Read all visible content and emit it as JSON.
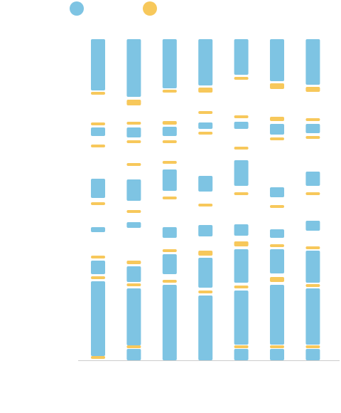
{
  "chart_data": {
    "type": "range_bar",
    "ylim": [
      0,
      451
    ],
    "series": [
      {
        "color": "#7ec4e3",
        "values": [
          [
            [
              379,
              451
            ],
            [
              315,
              327
            ],
            [
              228,
              255
            ],
            [
              180,
              187
            ],
            [
              121,
              140
            ],
            [
              6,
              111
            ]
          ],
          [
            [
              370,
              451
            ],
            [
              313,
              327
            ],
            [
              224,
              254
            ],
            [
              186,
              194
            ],
            [
              110,
              132
            ],
            [
              21,
              101
            ],
            [
              0,
              16
            ]
          ],
          [
            [
              382,
              451
            ],
            [
              315,
              328
            ],
            [
              238,
              268
            ],
            [
              172,
              187
            ],
            [
              121,
              149
            ],
            [
              0,
              106
            ]
          ],
          [
            [
              386,
              451
            ],
            [
              325,
              334
            ],
            [
              237,
              259
            ],
            [
              174,
              190
            ],
            [
              102,
              144
            ],
            [
              0,
              91
            ]
          ],
          [
            [
              401,
              451
            ],
            [
              325,
              335
            ],
            [
              245,
              281
            ],
            [
              175,
              191
            ],
            [
              109,
              156
            ],
            [
              22,
              98
            ],
            [
              0,
              16
            ]
          ],
          [
            [
              392,
              451
            ],
            [
              317,
              332
            ],
            [
              229,
              243
            ],
            [
              172,
              184
            ],
            [
              122,
              156
            ],
            [
              22,
              106
            ],
            [
              0,
              16
            ]
          ],
          [
            [
              387,
              451
            ],
            [
              319,
              332
            ],
            [
              245,
              265
            ],
            [
              182,
              196
            ],
            [
              109,
              154
            ],
            [
              22,
              101
            ],
            [
              0,
              16
            ]
          ]
        ]
      },
      {
        "color": "#f7c85b",
        "values": [
          [
            [
              373,
              377
            ],
            [
              330,
              334
            ],
            [
              299,
              303
            ],
            [
              218,
              222
            ],
            [
              143,
              147
            ],
            [
              114,
              118
            ],
            [
              2,
              6
            ]
          ],
          [
            [
              358,
              366
            ],
            [
              331,
              335
            ],
            [
              305,
              309
            ],
            [
              273,
              277
            ],
            [
              207,
              211
            ],
            [
              135,
              140
            ],
            [
              104,
              108
            ],
            [
              17,
              21
            ]
          ],
          [
            [
              376,
              380
            ],
            [
              331,
              336
            ],
            [
              305,
              309
            ],
            [
              276,
              280
            ],
            [
              226,
              230
            ],
            [
              152,
              156
            ],
            [
              109,
              113
            ]
          ],
          [
            [
              376,
              383
            ],
            [
              346,
              350
            ],
            [
              317,
              321
            ],
            [
              216,
              220
            ],
            [
              147,
              154
            ],
            [
              94,
              98
            ]
          ],
          [
            [
              394,
              398
            ],
            [
              340,
              344
            ],
            [
              296,
              300
            ],
            [
              232,
              236
            ],
            [
              160,
              167
            ],
            [
              101,
              105
            ],
            [
              17,
              21
            ]
          ],
          [
            [
              381,
              389
            ],
            [
              336,
              342
            ],
            [
              309,
              313
            ],
            [
              214,
              218
            ],
            [
              159,
              163
            ],
            [
              110,
              117
            ],
            [
              17,
              21
            ]
          ],
          [
            [
              377,
              384
            ],
            [
              336,
              340
            ],
            [
              311,
              315
            ],
            [
              232,
              236
            ],
            [
              156,
              160
            ],
            [
              103,
              107
            ],
            [
              17,
              21
            ]
          ]
        ]
      }
    ]
  }
}
